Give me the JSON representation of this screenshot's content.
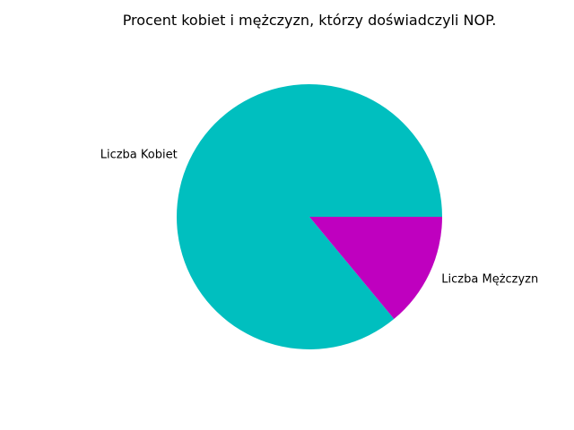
{
  "chart_data": {
    "type": "pie",
    "title": "Procent kobiet i mężczyzn, którzy doświadczyli NOP.",
    "slices": [
      {
        "label": "Liczba Kobiet",
        "value": 86,
        "color": "#00BFBF"
      },
      {
        "label": "Liczba Mężczyzn",
        "value": 14,
        "color": "#BF00BF"
      }
    ],
    "start_angle_deg": 0,
    "direction": "counterclockwise",
    "legend": "none"
  }
}
